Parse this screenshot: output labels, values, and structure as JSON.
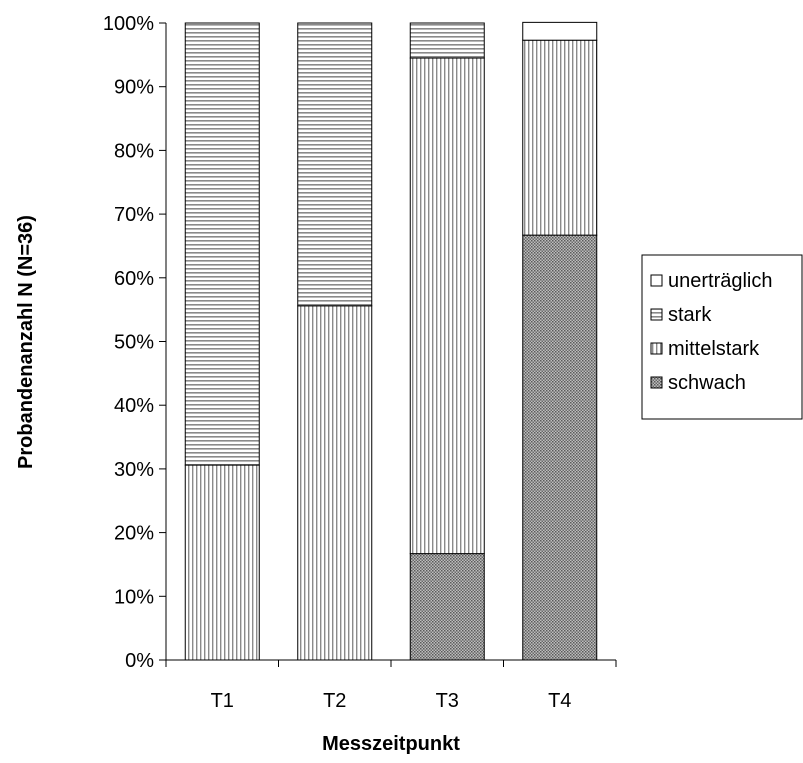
{
  "chart_data": {
    "type": "bar",
    "stacked": true,
    "percent_stacked": true,
    "categories": [
      "T1",
      "T2",
      "T3",
      "T4"
    ],
    "series": [
      {
        "name": "schwach",
        "values": [
          0,
          0,
          16.7,
          66.7
        ],
        "pattern": "crosshatch"
      },
      {
        "name": "mittelstark",
        "values": [
          30.6,
          55.6,
          77.8,
          30.6
        ],
        "pattern": "vertical-lines"
      },
      {
        "name": "stark",
        "values": [
          69.4,
          44.4,
          5.5,
          0
        ],
        "pattern": "horizontal-lines"
      },
      {
        "name": "unerträglich",
        "values": [
          0,
          0,
          0,
          2.8
        ],
        "pattern": "blank"
      }
    ],
    "legend_order": [
      "unerträglich",
      "stark",
      "mittelstark",
      "schwach"
    ],
    "xlabel": "Messzeitpunkt",
    "ylabel": "Probandenanzahl N (N=36)",
    "yticks": [
      "0%",
      "10%",
      "20%",
      "30%",
      "40%",
      "50%",
      "60%",
      "70%",
      "80%",
      "90%",
      "100%"
    ],
    "ylim": [
      0,
      100
    ],
    "grid": false,
    "legend_position": "right"
  }
}
